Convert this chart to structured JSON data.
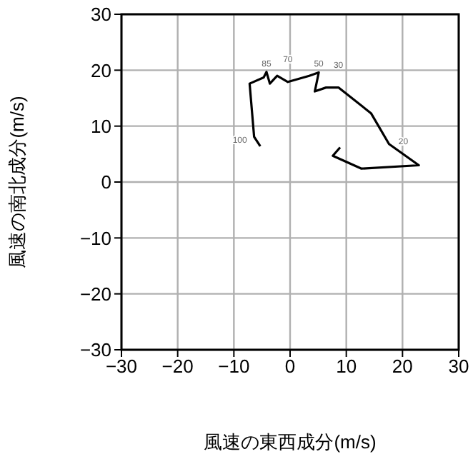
{
  "chart_data": {
    "type": "line",
    "xlabel": "風速の東西成分(m/s)",
    "ylabel": "風速の南北成分(m/s)",
    "xlim": [
      -30,
      30
    ],
    "ylim": [
      -30,
      30
    ],
    "xticks": [
      {
        "value": -30,
        "label": "−30"
      },
      {
        "value": -20,
        "label": "−20"
      },
      {
        "value": -10,
        "label": "−10"
      },
      0,
      10,
      20,
      30
    ],
    "yticks": [
      {
        "value": -30,
        "label": "−30"
      },
      {
        "value": -20,
        "label": "−20"
      },
      {
        "value": -10,
        "label": "−10"
      },
      0,
      10,
      20,
      30
    ],
    "grid": true,
    "marker": "none",
    "line_style": "solid",
    "series": [
      {
        "color": "#000000",
        "x": [
          -5.3,
          -6.4,
          -7.2,
          -4.7,
          -4.2,
          -3.6,
          -2.3,
          -0.4,
          3.4,
          5.1,
          4.4,
          6.4,
          8.6,
          14.4,
          17.6,
          22.9,
          12.7,
          7.6,
          8.9
        ],
        "values": [
          6.4,
          8.1,
          17.6,
          18.7,
          19.7,
          17.6,
          19.0,
          17.9,
          19.0,
          19.6,
          16.2,
          16.9,
          16.9,
          12.3,
          6.8,
          3.0,
          2.4,
          4.7,
          6.2
        ]
      }
    ],
    "annotations": [
      {
        "text": "100",
        "x": -6.4,
        "y": 8.1
      },
      {
        "text": "85",
        "x": -4.2,
        "y": 19.7
      },
      {
        "text": "70",
        "x": -0.4,
        "y": 17.9
      },
      {
        "text": "50",
        "x": 5.1,
        "y": 19.6
      },
      {
        "text": "30",
        "x": 8.6,
        "y": 16.9
      },
      {
        "text": "20",
        "x": 17.6,
        "y": 6.8
      }
    ]
  }
}
